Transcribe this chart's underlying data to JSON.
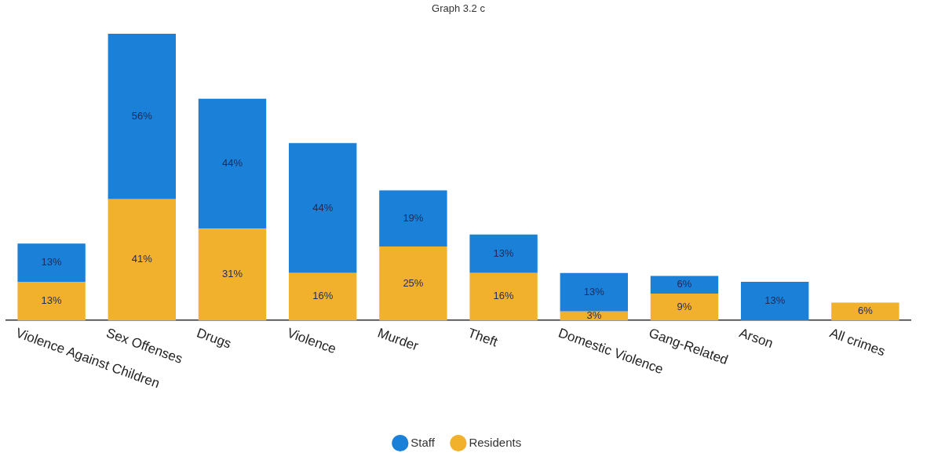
{
  "chart_data": {
    "type": "bar",
    "title": "Graph 3.2 c",
    "stacked": true,
    "legend": "bottom",
    "tick_labels": "x",
    "categories": [
      "Violence Against Children",
      "Sex Offenses",
      "Drugs",
      "Violence",
      "Murder",
      "Theft",
      "Domestic Violence",
      "Gang-Related",
      "Arson",
      "All crimes"
    ],
    "series": [
      {
        "name": "Residents",
        "color": "#f2b12c",
        "values": [
          13,
          41,
          31,
          16,
          25,
          16,
          3,
          9,
          null,
          6
        ],
        "value_labels": [
          "13%",
          "41%",
          "31%",
          "16%",
          "25%",
          "16%",
          "3%",
          "9%",
          null,
          "6%"
        ]
      },
      {
        "name": "Staff",
        "color": "#1a80d8",
        "values": [
          13,
          56,
          44,
          44,
          19,
          13,
          13,
          6,
          13,
          null
        ],
        "value_labels": [
          "13%",
          "56%",
          "44%",
          "44%",
          "19%",
          "13%",
          "13%",
          "6%",
          "13%",
          null
        ]
      }
    ]
  }
}
